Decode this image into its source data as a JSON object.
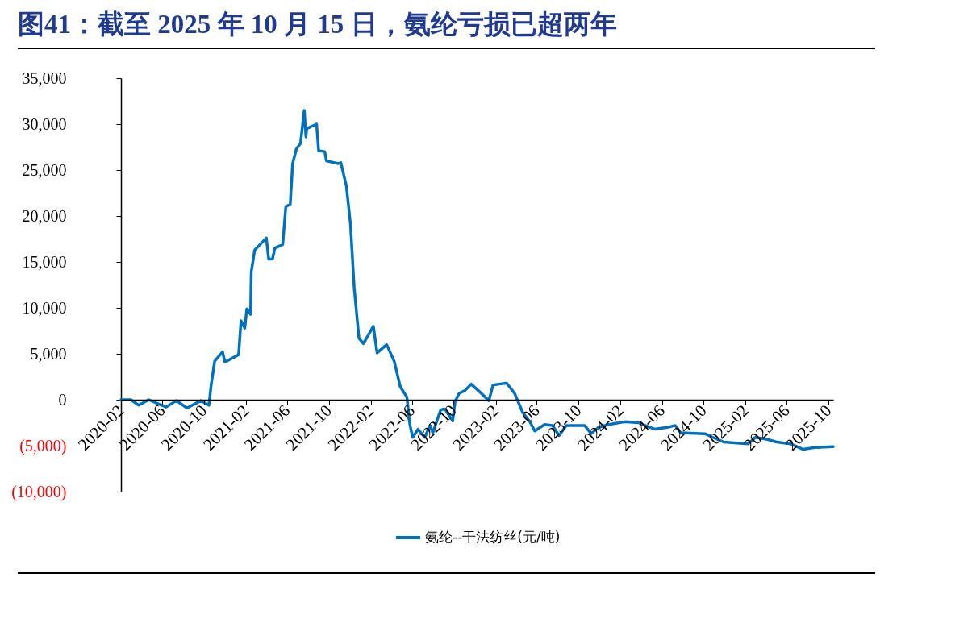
{
  "chart_data": {
    "type": "line",
    "title": "图41：截至 2025 年 10 月 15 日，氨纶亏损已超两年",
    "x": [
      "2020-02-01",
      "2020-03-01",
      "2020-03-24",
      "2020-04-22",
      "2020-06-12",
      "2020-07-12",
      "2020-08-12",
      "2020-09-22",
      "2020-10-15",
      "2020-10-22",
      "2020-11-01",
      "2020-11-24",
      "2020-12-01",
      "2021-01-10",
      "2021-01-17",
      "2021-01-28",
      "2021-02-03",
      "2021-02-14",
      "2021-02-16",
      "2021-02-26",
      "2021-04-01",
      "2021-04-08",
      "2021-04-19",
      "2021-04-26",
      "2021-05-19",
      "2021-05-28",
      "2021-06-10",
      "2021-06-17",
      "2021-06-28",
      "2021-07-10",
      "2021-07-17",
      "2021-07-21",
      "2021-07-26",
      "2021-07-28",
      "2021-08-26",
      "2021-09-01",
      "2021-09-19",
      "2021-09-24",
      "2021-10-28",
      "2021-11-05",
      "2021-11-21",
      "2021-12-03",
      "2021-12-14",
      "2021-12-28",
      "2022-01-10",
      "2022-02-08",
      "2022-02-19",
      "2022-03-19",
      "2022-04-10",
      "2022-04-28",
      "2022-05-17",
      "2022-05-26",
      "2022-06-03",
      "2022-06-19",
      "2022-07-08",
      "2022-07-24",
      "2022-08-01",
      "2022-08-24",
      "2022-09-05",
      "2022-09-28",
      "2022-10-05",
      "2022-10-17",
      "2022-11-03",
      "2022-11-21",
      "2022-12-12",
      "2023-01-12",
      "2023-01-24",
      "2023-02-10",
      "2023-03-05",
      "2023-03-28",
      "2023-04-21",
      "2023-05-12",
      "2023-05-26",
      "2023-06-24",
      "2023-07-17",
      "2023-08-05",
      "2023-08-26",
      "2023-10-19",
      "2023-11-07",
      "2023-11-28",
      "2023-12-28",
      "2024-02-14",
      "2024-03-24",
      "2024-05-10",
      "2024-06-17",
      "2024-07-10",
      "2024-07-26",
      "2024-10-05",
      "2024-10-28",
      "2024-11-28",
      "2025-02-08",
      "2025-03-01",
      "2025-04-03",
      "2025-05-03",
      "2025-06-12",
      "2025-07-19",
      "2025-08-22",
      "2025-10-15"
    ],
    "series": [
      {
        "name": "氨纶--干法纺丝(元/吨)",
        "color": "#0070c0",
        "values": [
          0,
          0,
          -600,
          0,
          -800,
          -100,
          -900,
          -100,
          -600,
          1700,
          4200,
          5200,
          4100,
          4900,
          8600,
          7800,
          9900,
          9300,
          13900,
          16300,
          17600,
          15300,
          15300,
          16500,
          16900,
          21000,
          21300,
          25700,
          27300,
          27900,
          30200,
          31500,
          28600,
          29500,
          30000,
          27100,
          27000,
          26000,
          25700,
          25800,
          23300,
          19200,
          12200,
          6700,
          6100,
          8000,
          5100,
          6000,
          4200,
          1400,
          300,
          -2700,
          -4100,
          -3200,
          -4100,
          -2800,
          -3600,
          -1100,
          -1000,
          -2300,
          -200,
          700,
          1000,
          1700,
          1000,
          -100,
          1600,
          1700,
          1800,
          700,
          -1400,
          -2400,
          -3400,
          -2700,
          -2800,
          -3900,
          -2800,
          -2800,
          -3700,
          -3000,
          -2700,
          -2400,
          -2500,
          -3200,
          -3000,
          -2800,
          -3600,
          -3700,
          -4100,
          -4600,
          -4800,
          -4100,
          -4300,
          -4600,
          -4800,
          -5400,
          -5200,
          -5100
        ]
      }
    ],
    "xlim": [
      "2020-02",
      "2025-10-15"
    ],
    "xticks": [
      "2020-02",
      "2020-06",
      "2020-10",
      "2021-02",
      "2021-06",
      "2021-10",
      "2022-02",
      "2022-06",
      "2022-10",
      "2023-02",
      "2023-06",
      "2023-10",
      "2024-02",
      "2024-06",
      "2024-10",
      "2025-02",
      "2025-06",
      "2025-10"
    ],
    "ylim": [
      -10000,
      35000
    ],
    "yticks": [
      {
        "value": -10000,
        "label": "(10,000)"
      },
      {
        "value": -5000,
        "label": "(5,000)"
      },
      {
        "value": 0,
        "label": "0"
      },
      {
        "value": 5000,
        "label": "5,000"
      },
      {
        "value": 10000,
        "label": "10,000"
      },
      {
        "value": 15000,
        "label": "15,000"
      },
      {
        "value": 20000,
        "label": "20,000"
      },
      {
        "value": 25000,
        "label": "25,000"
      },
      {
        "value": 30000,
        "label": "30,000"
      },
      {
        "value": 35000,
        "label": "35,000"
      }
    ],
    "grid": false,
    "legend": "bottom",
    "marker": "none",
    "line_style": "solid"
  }
}
